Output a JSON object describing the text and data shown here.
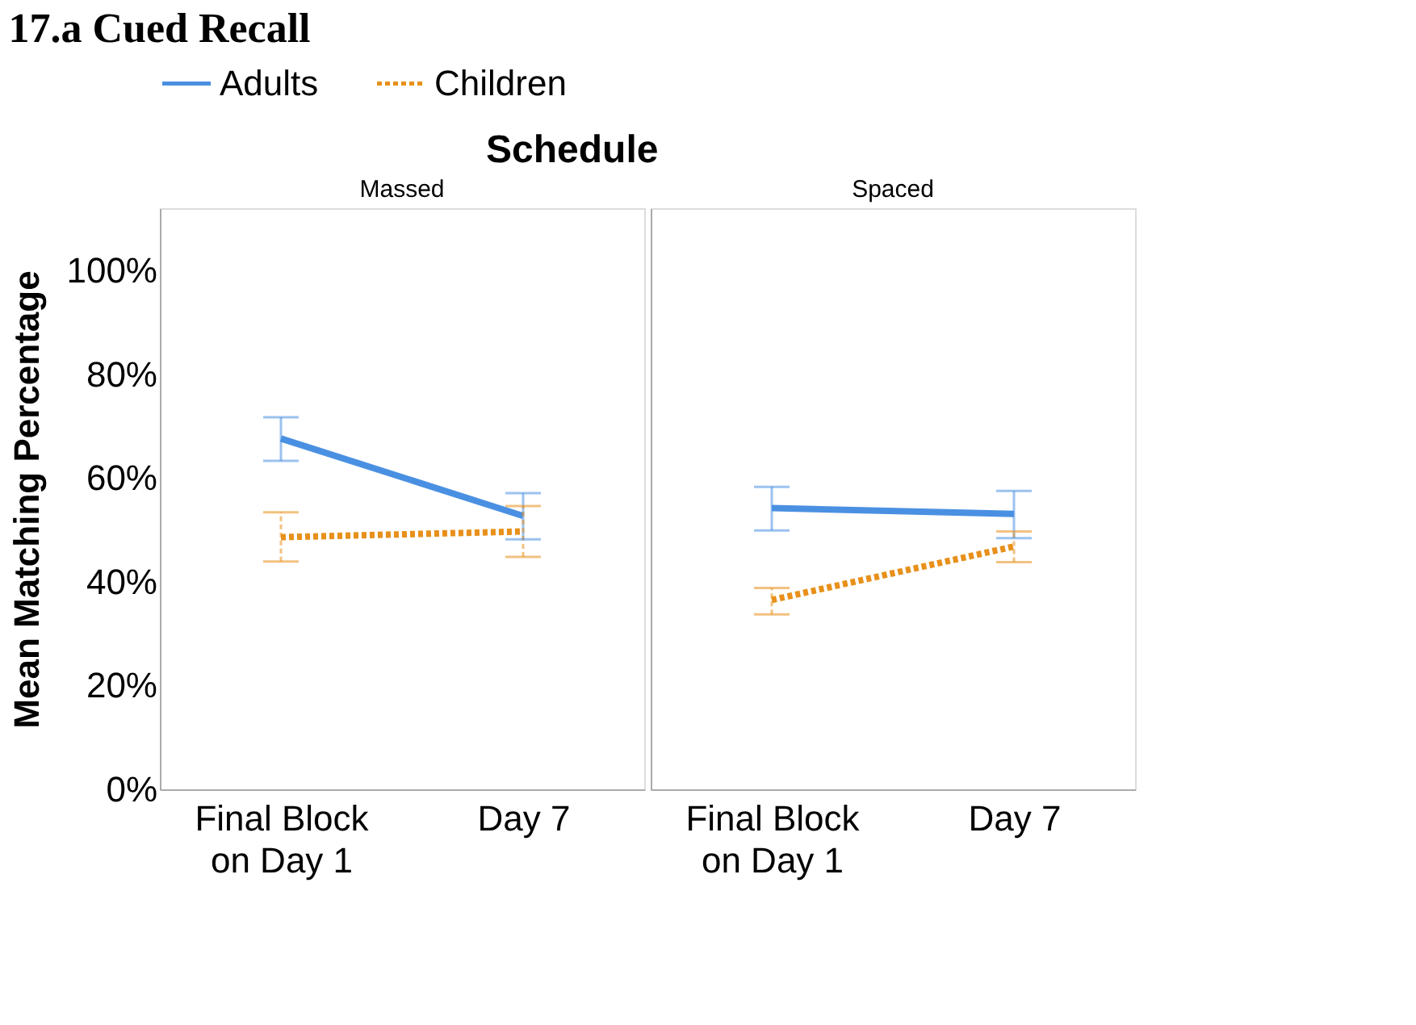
{
  "chart_data": [
    {
      "type": "line",
      "title": "Massed",
      "annotations": [
        "17.a Cued Recall",
        "Schedule"
      ],
      "ylabel": "Mean Matching Percentage",
      "categories": [
        "Final Block on Day 1",
        "Day 7"
      ],
      "ylim": [
        0,
        112
      ],
      "yticks": [
        {
          "value": 0,
          "label": "0%"
        },
        {
          "value": 20,
          "label": "20%"
        },
        {
          "value": 40,
          "label": "40%"
        },
        {
          "value": 60,
          "label": "60%"
        },
        {
          "value": 80,
          "label": "80%"
        },
        {
          "value": 100,
          "label": "100%"
        }
      ],
      "grid": false,
      "legend": "top",
      "marker": "none",
      "series": [
        {
          "name": "Adults",
          "color": "#4a90e2",
          "line_style": "solid",
          "values": [
            67.6,
            52.7
          ],
          "errors": [
            [
              63.3,
              71.7
            ],
            [
              48.2,
              57.1
            ]
          ]
        },
        {
          "name": "Children",
          "color": "#e8901a",
          "line_style": "dotted",
          "values": [
            48.6,
            49.7
          ],
          "errors": [
            [
              43.9,
              53.4
            ],
            [
              44.8,
              54.6
            ]
          ]
        }
      ]
    },
    {
      "type": "line",
      "title": "Spaced",
      "categories": [
        "Final Block on Day 1",
        "Day 7"
      ],
      "ylim": [
        0,
        112
      ],
      "yticks": [
        {
          "value": 0,
          "label": null
        },
        {
          "value": 20,
          "label": null
        },
        {
          "value": 40,
          "label": null
        },
        {
          "value": 60,
          "label": null
        },
        {
          "value": 80,
          "label": null
        },
        {
          "value": 100,
          "label": null
        }
      ],
      "grid": false,
      "tick_labels": "x",
      "marker": "none",
      "series": [
        {
          "name": "Adults",
          "color": "#4a90e2",
          "line_style": "solid",
          "values": [
            54.2,
            53.1
          ],
          "errors": [
            [
              49.9,
              58.3
            ],
            [
              48.4,
              57.5
            ]
          ]
        },
        {
          "name": "Children",
          "color": "#e8901a",
          "line_style": "dotted",
          "values": [
            36.5,
            46.8
          ],
          "errors": [
            [
              33.7,
              38.8
            ],
            [
              43.8,
              49.7
            ]
          ]
        }
      ]
    }
  ]
}
